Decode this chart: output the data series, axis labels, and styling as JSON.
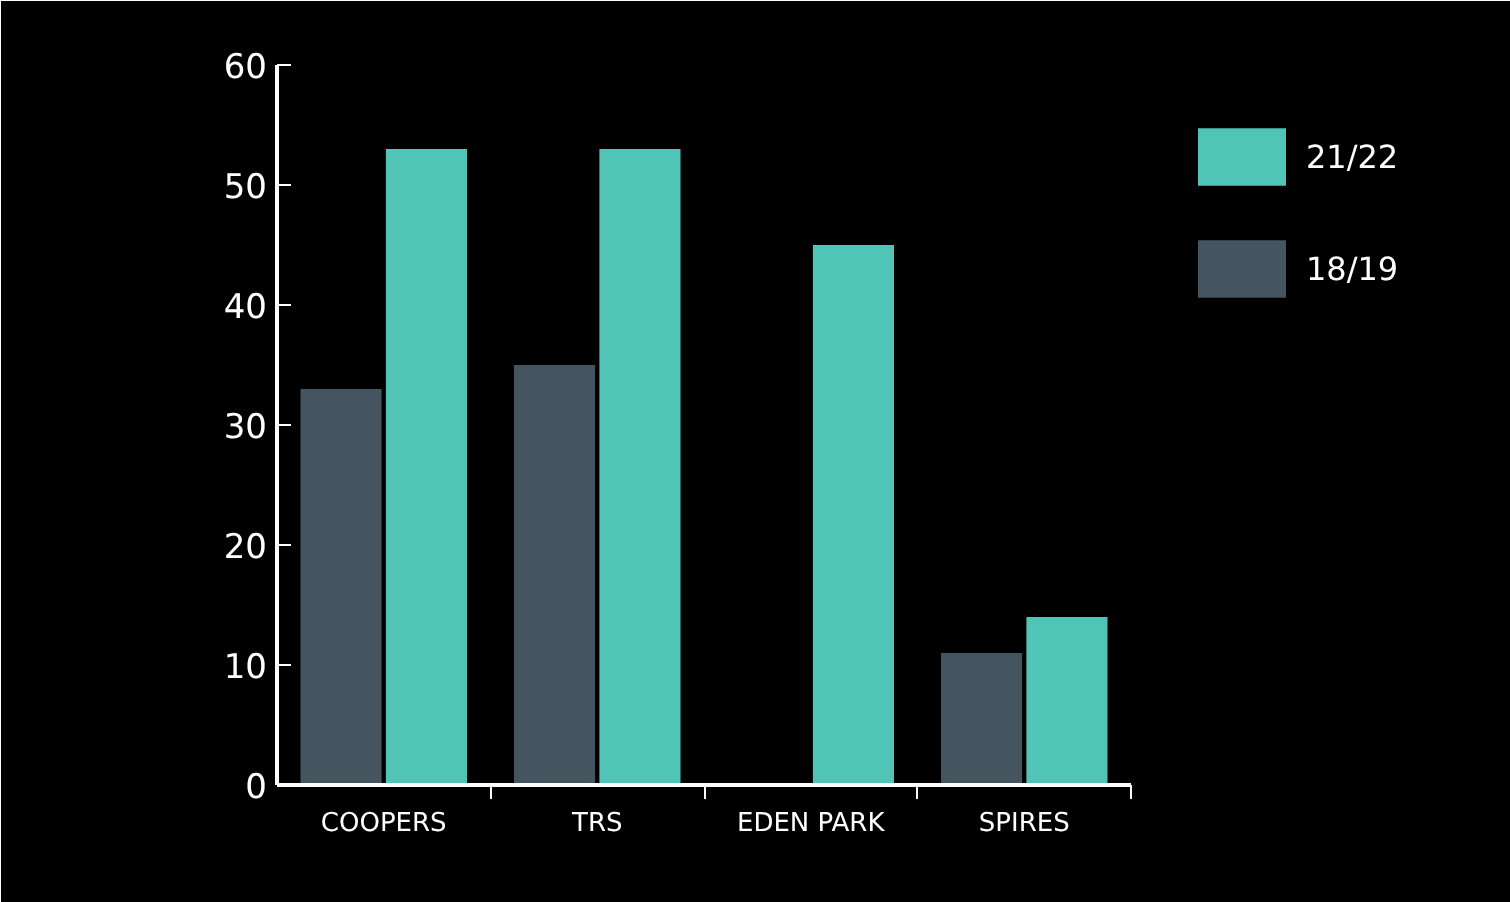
{
  "chart_data": {
    "type": "bar",
    "categories": [
      "COOPERS",
      "TRS",
      "EDEN PARK",
      "SPIRES"
    ],
    "series": [
      {
        "name": "18/19",
        "color": "#44555f",
        "values": [
          33,
          35,
          null,
          11
        ]
      },
      {
        "name": "21/22",
        "color": "#4fc4b7",
        "values": [
          53,
          53,
          45,
          14
        ]
      }
    ],
    "ylim": [
      0,
      60
    ],
    "yticks": [
      0,
      10,
      20,
      30,
      40,
      50,
      60
    ],
    "grid": false,
    "legend": "top right"
  }
}
